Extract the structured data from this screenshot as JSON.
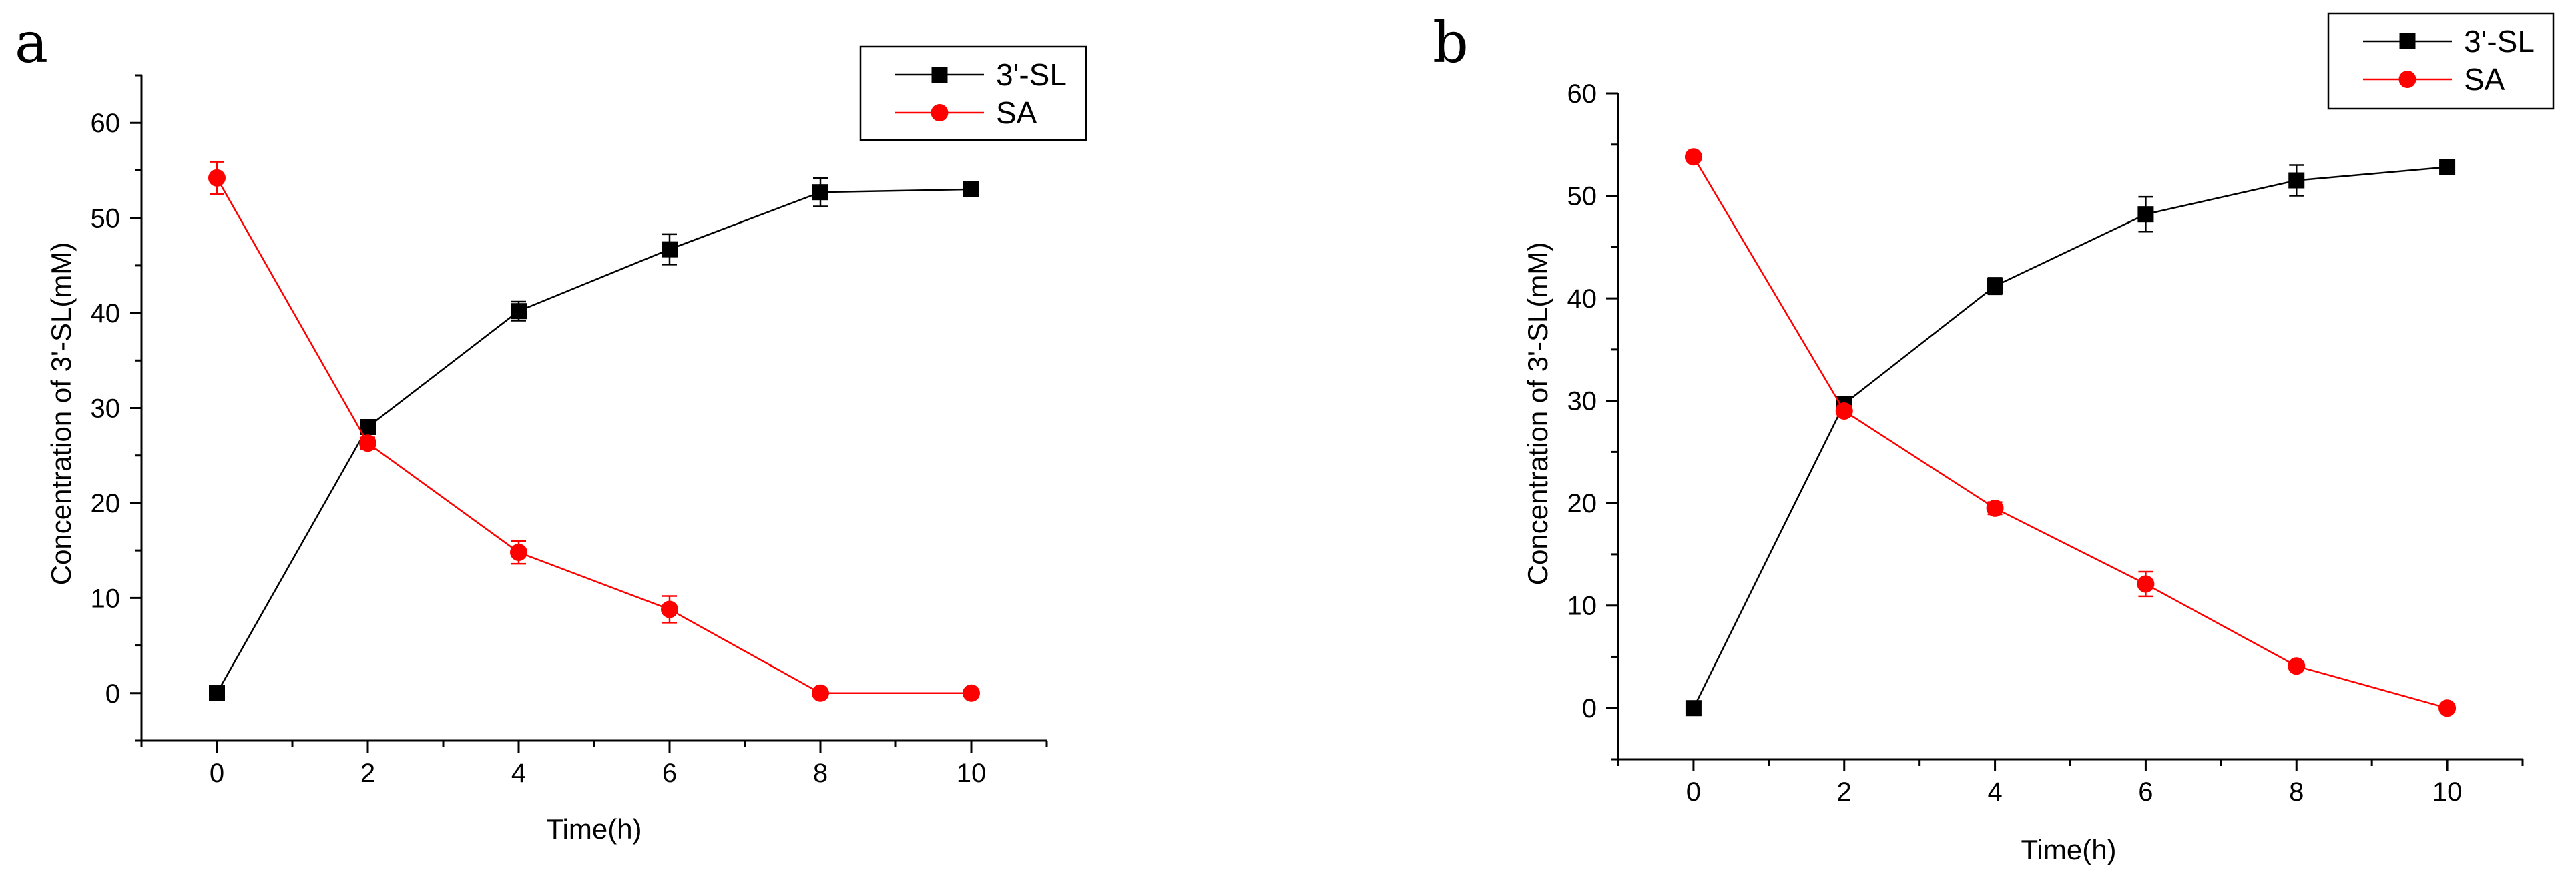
{
  "chart_data": [
    {
      "panel": "a",
      "type": "line",
      "xlabel": "Time(h)",
      "ylabel": "Concentration of 3'-SL(mM)",
      "xlim": [
        -1,
        11
      ],
      "ylim": [
        -5,
        65
      ],
      "xticks": [
        0,
        2,
        4,
        6,
        8,
        10
      ],
      "yticks": [
        0,
        10,
        20,
        30,
        40,
        50,
        60
      ],
      "legend": "top-right",
      "series": [
        {
          "name": "3'-SL",
          "color": "#000000",
          "marker": "square",
          "x": [
            0,
            2,
            4,
            6,
            8,
            10
          ],
          "y": [
            0,
            28,
            40.2,
            46.7,
            52.7,
            53
          ],
          "error": [
            0,
            0.6,
            1,
            1.6,
            1.5,
            0.4
          ]
        },
        {
          "name": "SA",
          "color": "#ff0000",
          "marker": "circle",
          "x": [
            0,
            2,
            4,
            6,
            8,
            10
          ],
          "y": [
            54.2,
            26.3,
            14.8,
            8.8,
            0,
            0
          ],
          "error": [
            1.7,
            0.6,
            1.2,
            1.4,
            0,
            0
          ]
        }
      ]
    },
    {
      "panel": "b",
      "type": "line",
      "xlabel": "Time(h)",
      "ylabel": "Concentration of 3'-SL(mM)",
      "xlim": [
        -1,
        11
      ],
      "ylim": [
        -5,
        60
      ],
      "xticks": [
        0,
        2,
        4,
        6,
        8,
        10
      ],
      "yticks": [
        0,
        10,
        20,
        30,
        40,
        50,
        60
      ],
      "legend": "top-right",
      "series": [
        {
          "name": "3'-SL",
          "color": "#000000",
          "marker": "square",
          "x": [
            0,
            2,
            4,
            6,
            8,
            10
          ],
          "y": [
            0,
            29.7,
            41.2,
            48.2,
            51.5,
            52.8
          ],
          "error": [
            0,
            0.5,
            0.8,
            1.7,
            1.5,
            0.5
          ]
        },
        {
          "name": "SA",
          "color": "#ff0000",
          "marker": "circle",
          "x": [
            0,
            2,
            4,
            6,
            8,
            10
          ],
          "y": [
            53.8,
            29,
            19.5,
            12.1,
            4.1,
            0
          ],
          "error": [
            0,
            0.5,
            0.6,
            1.2,
            0.3,
            0
          ]
        }
      ]
    }
  ]
}
